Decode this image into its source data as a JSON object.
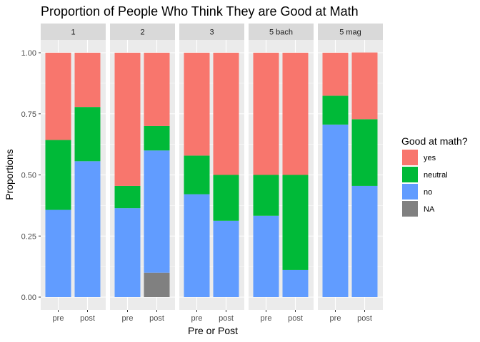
{
  "chart_data": {
    "type": "bar",
    "stacked": true,
    "title": "Proportion of People Who Think They are Good at Math",
    "xlabel": "Pre or Post",
    "ylabel": "Proportions",
    "ylim": [
      0,
      1
    ],
    "yticks": [
      "0.00",
      "0.25",
      "0.50",
      "0.75",
      "1.00"
    ],
    "categories": [
      "pre",
      "post"
    ],
    "legend": {
      "title": "Good at math?",
      "position": "right",
      "entries": [
        {
          "key": "yes",
          "label": "yes",
          "color": "#F8766D"
        },
        {
          "key": "neutral",
          "label": "neutral",
          "color": "#00BA38"
        },
        {
          "key": "no",
          "label": "no",
          "color": "#619CFF"
        },
        {
          "key": "na",
          "label": "NA",
          "color": "#808080"
        }
      ]
    },
    "facets": [
      {
        "label": "1",
        "bars": {
          "pre": {
            "na": 0,
            "no": 0.357,
            "neutral": 0.286,
            "yes": 0.357
          },
          "post": {
            "na": 0,
            "no": 0.556,
            "neutral": 0.222,
            "yes": 0.222
          }
        }
      },
      {
        "label": "2",
        "bars": {
          "pre": {
            "na": 0,
            "no": 0.364,
            "neutral": 0.091,
            "yes": 0.545
          },
          "post": {
            "na": 0.1,
            "no": 0.5,
            "neutral": 0.1,
            "yes": 0.3
          }
        }
      },
      {
        "label": "3",
        "bars": {
          "pre": {
            "na": 0,
            "no": 0.421,
            "neutral": 0.158,
            "yes": 0.421
          },
          "post": {
            "na": 0,
            "no": 0.3125,
            "neutral": 0.1875,
            "yes": 0.5
          }
        }
      },
      {
        "label": "5 bach",
        "bars": {
          "pre": {
            "na": 0,
            "no": 0.333,
            "neutral": 0.167,
            "yes": 0.5
          },
          "post": {
            "na": 0,
            "no": 0.111,
            "neutral": 0.389,
            "yes": 0.5
          }
        }
      },
      {
        "label": "5 mag",
        "bars": {
          "pre": {
            "na": 0,
            "no": 0.706,
            "neutral": 0.118,
            "yes": 0.176
          },
          "post": {
            "na": 0,
            "no": 0.455,
            "neutral": 0.273,
            "yes": 0.273
          }
        }
      }
    ]
  }
}
